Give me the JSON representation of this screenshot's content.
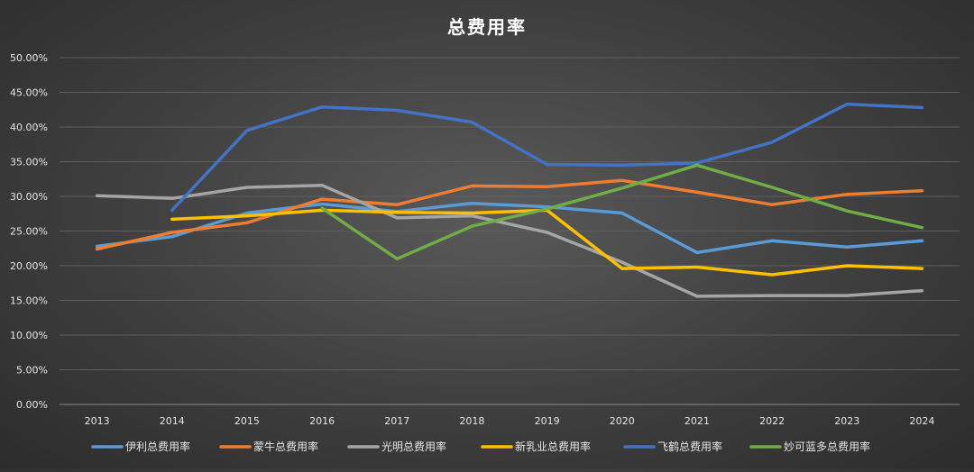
{
  "chart_data": {
    "type": "line",
    "title": "总费用率",
    "xlabel": "",
    "ylabel": "",
    "categories": [
      "2013",
      "2014",
      "2015",
      "2016",
      "2017",
      "2018",
      "2019",
      "2020",
      "2021",
      "2022",
      "2023",
      "2024"
    ],
    "ylim": [
      0,
      0.5
    ],
    "yticks": [
      "0.00%",
      "5.00%",
      "10.00%",
      "15.00%",
      "20.00%",
      "25.00%",
      "30.00%",
      "35.00%",
      "40.00%",
      "45.00%",
      "50.00%"
    ],
    "grid": true,
    "legend_position": "bottom",
    "series": [
      {
        "name": "伊利总费用率",
        "color": "#5b9bd5",
        "values": [
          0.228,
          0.242,
          0.276,
          0.289,
          0.278,
          0.29,
          0.285,
          0.276,
          0.219,
          0.236,
          0.227,
          0.236
        ]
      },
      {
        "name": "蒙牛总费用率",
        "color": "#ed7d31",
        "values": [
          0.224,
          0.248,
          0.262,
          0.296,
          0.288,
          0.315,
          0.314,
          0.323,
          0.306,
          0.288,
          0.303,
          0.308
        ]
      },
      {
        "name": "光明总费用率",
        "color": "#a5a5a5",
        "values": [
          0.301,
          0.297,
          0.313,
          0.316,
          0.269,
          0.272,
          0.248,
          0.205,
          0.156,
          0.157,
          0.157,
          0.164
        ]
      },
      {
        "name": "新乳业总费用率",
        "color": "#ffc000",
        "values": [
          null,
          0.267,
          0.272,
          0.28,
          0.277,
          0.276,
          0.28,
          0.196,
          0.198,
          0.187,
          0.2,
          0.196
        ]
      },
      {
        "name": "飞鹤总费用率",
        "color": "#4472c4",
        "values": [
          null,
          0.28,
          0.395,
          0.429,
          0.424,
          0.407,
          0.346,
          0.345,
          0.348,
          0.378,
          0.433,
          0.428
        ]
      },
      {
        "name": "妙可蓝多总费用率",
        "color": "#70ad47",
        "values": [
          null,
          null,
          null,
          0.283,
          0.21,
          0.257,
          0.282,
          0.312,
          0.345,
          0.313,
          0.279,
          0.255
        ]
      }
    ]
  }
}
